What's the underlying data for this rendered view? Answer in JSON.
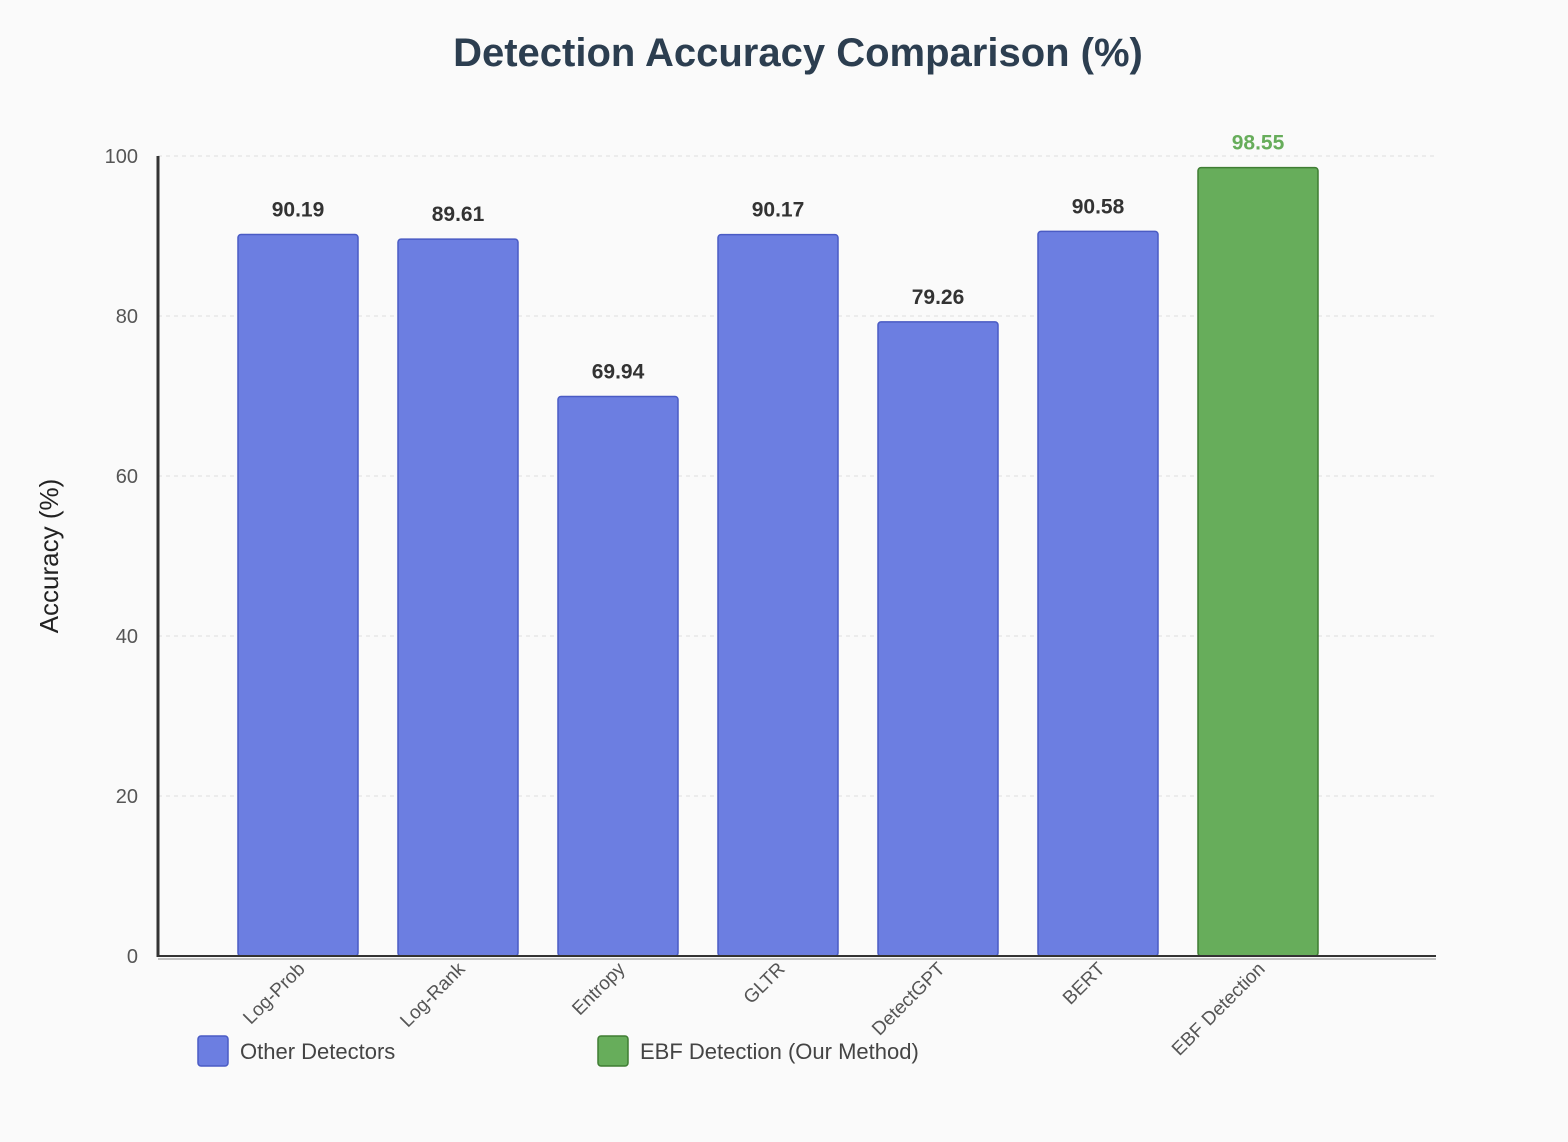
{
  "chart_data": {
    "type": "bar",
    "title": "Detection Accuracy Comparison (%)",
    "xlabel": "",
    "ylabel": "Accuracy (%)",
    "ylim": [
      0,
      100
    ],
    "yticks": [
      0,
      20,
      40,
      60,
      80,
      100
    ],
    "grid": true,
    "categories": [
      "Log-Prob",
      "Log-Rank",
      "Entropy",
      "GLTR",
      "DetectGPT",
      "BERT",
      "EBF Detection"
    ],
    "values": [
      90.19,
      89.61,
      69.94,
      90.17,
      79.26,
      90.58,
      98.55
    ],
    "value_labels": [
      "90.19",
      "89.61",
      "69.94",
      "90.17",
      "79.26",
      "90.58",
      "98.55"
    ],
    "groups": [
      "other",
      "other",
      "other",
      "other",
      "other",
      "other",
      "ours"
    ],
    "legend": {
      "placement": "bottom-left",
      "entries": [
        {
          "group": "other",
          "label": "Other Detectors"
        },
        {
          "group": "ours",
          "label": "EBF Detection (Our Method)"
        }
      ]
    },
    "colors": {
      "other_fill": "#6c7ee1",
      "other_stroke": "#4a5bc4",
      "other_label": "#333333",
      "ours_fill": "#67ad5b",
      "ours_stroke": "#3f7d33",
      "ours_label": "#67ad5b",
      "grid": "#dddddd",
      "axis": "#333333"
    }
  }
}
